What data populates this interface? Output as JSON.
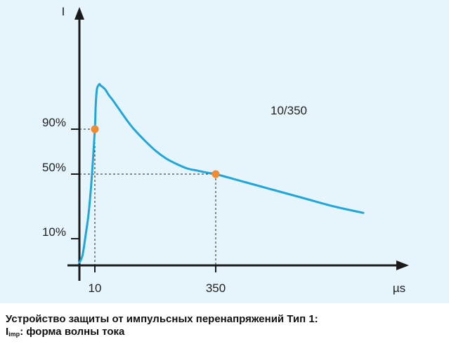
{
  "chart_data": {
    "type": "line",
    "title": "",
    "ylabel": "I",
    "xlabel": "µs",
    "curve_label": "10/350",
    "xlim": [
      0,
      500
    ],
    "ylim": [
      0,
      140
    ],
    "x_ticks": [
      {
        "value": 10,
        "label": "10"
      },
      {
        "value": 350,
        "label": "350"
      }
    ],
    "y_ticks": [
      {
        "value": 10,
        "label": "10%"
      },
      {
        "value": 50,
        "label": "50%"
      },
      {
        "value": 90,
        "label": "90%"
      }
    ],
    "colors": {
      "curve": "#21a6dc",
      "marker": "#f28b30",
      "axis": "#1a1a1a",
      "guide": "#222222",
      "background": "#e6f4fb"
    },
    "series": [
      {
        "x": [
          0,
          2,
          4,
          6,
          8,
          10,
          12,
          14,
          16,
          18,
          20,
          22,
          24,
          26,
          30,
          34,
          40,
          50,
          60,
          80,
          100,
          120,
          150,
          180,
          210,
          240,
          270,
          300,
          330,
          350,
          380,
          410,
          440,
          470,
          500
        ],
        "y": [
          0,
          3,
          12,
          26,
          48,
          90,
          108,
          120,
          126,
          128,
          129,
          130,
          130,
          129,
          128,
          127,
          125,
          120,
          116,
          107,
          98,
          90,
          80,
          71,
          64,
          59,
          55,
          53,
          51,
          50,
          45,
          40,
          35,
          30,
          26
        ]
      }
    ],
    "markers": [
      {
        "x": 10,
        "y": 90
      },
      {
        "x": 350,
        "y": 50
      }
    ]
  },
  "caption": {
    "line1": "Устройство защиты от импульсных перенапряжений Тип 1:",
    "line2_main": "I",
    "line2_sub": "imp",
    "line2_rest": ": форма волны тока"
  }
}
